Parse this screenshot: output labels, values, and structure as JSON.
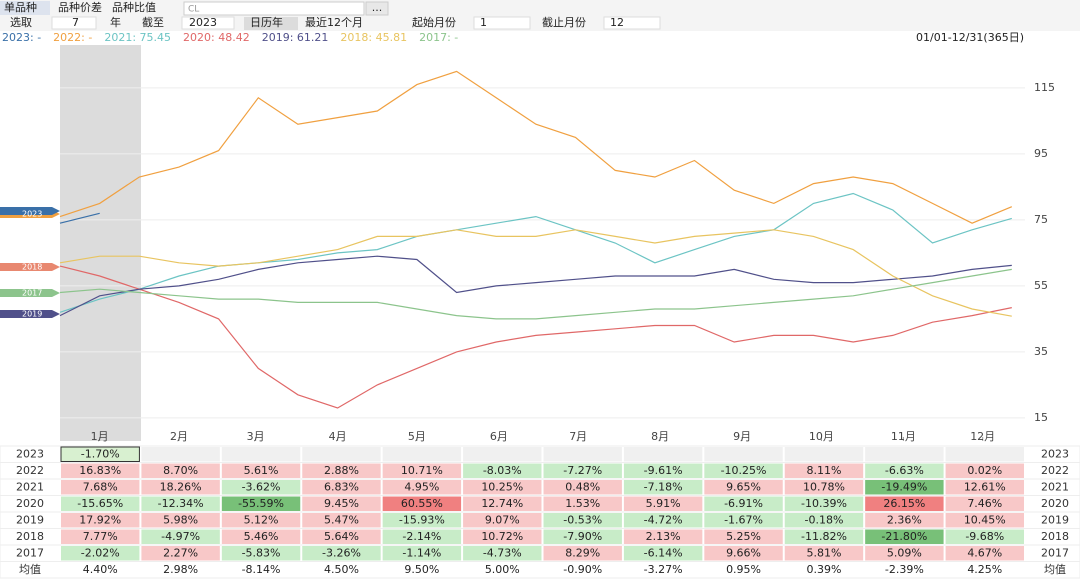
{
  "toolbar": {
    "tabs": [
      "单品种",
      "品种价差",
      "品种比值"
    ],
    "symbol": "CL",
    "more": "...",
    "select_label": "选取",
    "years": "7",
    "year_unit": "年",
    "until": "截至",
    "until_year": "2023",
    "btn_calendar": "日历年",
    "btn_recent": "最近12个月",
    "start_label": "起始月份",
    "start": "1",
    "end_label": "截止月份",
    "end": "12"
  },
  "range_label": "01/01-12/31(365日)",
  "chart_data": {
    "type": "line",
    "x": [
      0,
      15,
      30,
      45,
      60,
      75,
      90,
      105,
      120,
      135,
      150,
      165,
      180,
      195,
      210,
      225,
      240,
      255,
      270,
      285,
      300,
      315,
      330,
      345,
      360
    ],
    "xlim": [
      0,
      365
    ],
    "xticks": [
      {
        "value": 15,
        "label": "1月"
      },
      {
        "value": 45,
        "label": "2月"
      },
      {
        "value": 74,
        "label": "3月"
      },
      {
        "value": 105,
        "label": "4月"
      },
      {
        "value": 135,
        "label": "5月"
      },
      {
        "value": 166,
        "label": "6月"
      },
      {
        "value": 196,
        "label": "7月"
      },
      {
        "value": 227,
        "label": "8月"
      },
      {
        "value": 258,
        "label": "9月"
      },
      {
        "value": 288,
        "label": "10月"
      },
      {
        "value": 319,
        "label": "11月"
      },
      {
        "value": 349,
        "label": "12月"
      }
    ],
    "ylim": [
      8,
      128
    ],
    "yticks": [
      15,
      35,
      55,
      75,
      95,
      115
    ],
    "grid": true,
    "series": [
      {
        "name": "2023: -",
        "color": "#3a70a8",
        "values": [
          74,
          77,
          null,
          null,
          null,
          null,
          null,
          null,
          null,
          null,
          null,
          null,
          null,
          null,
          null,
          null,
          null,
          null,
          null,
          null,
          null,
          null,
          null,
          null,
          null
        ]
      },
      {
        "name": "2022: -",
        "color": "#f0a040",
        "values": [
          76,
          80,
          88,
          91,
          96,
          112,
          104,
          106,
          108,
          116,
          120,
          112,
          104,
          100,
          90,
          88,
          93,
          84,
          80,
          86,
          88,
          86,
          80,
          74,
          79
        ]
      },
      {
        "name": "2021: 75.45",
        "color": "#6cc4c4",
        "values": [
          47,
          51,
          54,
          58,
          61,
          62,
          63,
          65,
          66,
          70,
          72,
          74,
          76,
          72,
          68,
          62,
          66,
          70,
          72,
          80,
          83,
          78,
          68,
          72,
          75.45
        ]
      },
      {
        "name": "2020: 48.42",
        "color": "#e06868",
        "values": [
          61,
          58,
          54,
          50,
          45,
          30,
          22,
          18,
          25,
          30,
          35,
          38,
          40,
          41,
          42,
          43,
          43,
          38,
          40,
          40,
          38,
          40,
          44,
          46,
          48.42
        ]
      },
      {
        "name": "2019: 61.21",
        "color": "#50508a",
        "values": [
          46,
          52,
          54,
          55,
          57,
          60,
          62,
          63,
          64,
          63,
          53,
          55,
          56,
          57,
          58,
          58,
          58,
          60,
          57,
          56,
          56,
          57,
          58,
          60,
          61.21
        ]
      },
      {
        "name": "2018: 45.81",
        "color": "#e8c460",
        "values": [
          62,
          64,
          64,
          62,
          61,
          62,
          64,
          66,
          70,
          70,
          72,
          70,
          70,
          72,
          70,
          68,
          70,
          71,
          72,
          70,
          66,
          58,
          52,
          48,
          45.81
        ]
      },
      {
        "name": "2017: -",
        "color": "#8cc48c",
        "values": [
          53,
          54,
          53,
          52,
          51,
          51,
          50,
          50,
          50,
          48,
          46,
          45,
          45,
          46,
          47,
          48,
          48,
          49,
          50,
          51,
          52,
          54,
          56,
          58,
          60
        ]
      }
    ]
  },
  "table": {
    "rows": [
      {
        "year": "2023",
        "cells": [
          "-1.70%"
        ]
      },
      {
        "year": "2022",
        "cells": [
          "16.83%",
          "8.70%",
          "5.61%",
          "2.88%",
          "10.71%",
          "-8.03%",
          "-7.27%",
          "-9.61%",
          "-10.25%",
          "8.11%",
          "-6.63%",
          "0.02%"
        ]
      },
      {
        "year": "2021",
        "cells": [
          "7.68%",
          "18.26%",
          "-3.62%",
          "6.83%",
          "4.95%",
          "10.25%",
          "0.48%",
          "-7.18%",
          "9.65%",
          "10.78%",
          "-19.49%",
          "12.61%"
        ]
      },
      {
        "year": "2020",
        "cells": [
          "-15.65%",
          "-12.34%",
          "-55.59%",
          "9.45%",
          "60.55%",
          "12.74%",
          "1.53%",
          "5.91%",
          "-6.91%",
          "-10.39%",
          "26.15%",
          "7.46%"
        ]
      },
      {
        "year": "2019",
        "cells": [
          "17.92%",
          "5.98%",
          "5.12%",
          "5.47%",
          "-15.93%",
          "9.07%",
          "-0.53%",
          "-4.72%",
          "-1.67%",
          "-0.18%",
          "2.36%",
          "10.45%"
        ]
      },
      {
        "year": "2018",
        "cells": [
          "7.77%",
          "-4.97%",
          "5.46%",
          "5.64%",
          "-2.14%",
          "10.72%",
          "-7.90%",
          "2.13%",
          "5.25%",
          "-11.82%",
          "-21.80%",
          "-9.68%"
        ]
      },
      {
        "year": "2017",
        "cells": [
          "-2.02%",
          "2.27%",
          "-5.83%",
          "-3.26%",
          "-1.14%",
          "-4.73%",
          "8.29%",
          "-6.14%",
          "9.66%",
          "5.81%",
          "5.09%",
          "4.67%"
        ]
      },
      {
        "year": "均值",
        "cells": [
          "4.40%",
          "2.98%",
          "-8.14%",
          "4.50%",
          "9.50%",
          "5.00%",
          "-0.90%",
          "-3.27%",
          "0.95%",
          "0.39%",
          "-2.39%",
          "4.25%"
        ]
      }
    ]
  }
}
